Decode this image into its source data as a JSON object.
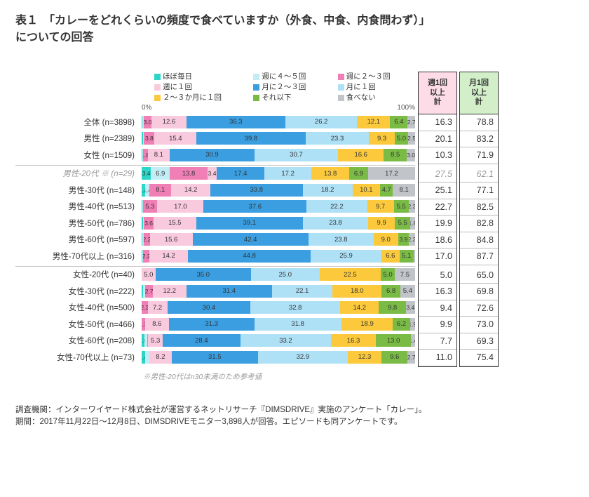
{
  "title": {
    "line1": "表１　「カレーをどれくらいの頻度で食べていますか（外食、中食、内食問わず）」",
    "line2": "についての回答"
  },
  "colors": {
    "c1": "#2dd6c8",
    "c2": "#c3edf5",
    "c3": "#f07fb6",
    "c4": "#f9c9dd",
    "c5": "#3a9ee0",
    "c6": "#aee0f6",
    "c7": "#fbc93b",
    "c8": "#7abb45",
    "c9": "#c1c5c9",
    "axis_text": "#555555",
    "border": "#333333",
    "bg": "#ffffff",
    "head_pink": "#fddce8",
    "head_green": "#d2efc9"
  },
  "legend": [
    {
      "label": "ほぼ毎日",
      "color_key": "c1"
    },
    {
      "label": "週に４～５回",
      "color_key": "c2"
    },
    {
      "label": "週に２～３回",
      "color_key": "c3"
    },
    {
      "label": "週に１回",
      "color_key": "c4"
    },
    {
      "label": "月に２～３回",
      "color_key": "c5"
    },
    {
      "label": "月に１回",
      "color_key": "c6"
    },
    {
      "label": "２～３か月に１回",
      "color_key": "c7"
    },
    {
      "label": "それ以下",
      "color_key": "c8"
    },
    {
      "label": "食べない",
      "color_key": "c9"
    }
  ],
  "axis": {
    "p0": "0%",
    "p100": "100%"
  },
  "summary_headers": {
    "col1": "週1回\n以上\n計",
    "col2": "月1回\n以上\n計"
  },
  "groups": [
    {
      "rows": [
        {
          "label": "全体 (n=3898)",
          "italic": false,
          "segments": [
            0.3,
            0.4,
            3.0,
            12.6,
            36.3,
            26.2,
            12.1,
            6.4,
            2.7
          ],
          "shown": [
            "",
            "",
            "3.0",
            "12.6",
            "36.3",
            "26.2",
            "12.1",
            "6.4",
            "2.7"
          ],
          "sum1": "16.3",
          "sum2": "78.8"
        },
        {
          "label": "男性 (n=2389)",
          "italic": false,
          "segments": [
            0.4,
            0.5,
            3.8,
            15.4,
            39.8,
            23.3,
            9.3,
            5.0,
            2.5
          ],
          "shown": [
            "",
            "",
            "3.8",
            "15.4",
            "39.8",
            "23.3",
            "9.3",
            "5.0",
            "2.5"
          ],
          "sum1": "20.1",
          "sum2": "83.2"
        },
        {
          "label": "女性 (n=1509)",
          "italic": false,
          "segments": [
            0.2,
            0.2,
            1.8,
            8.1,
            30.9,
            30.7,
            16.6,
            8.5,
            3.0
          ],
          "shown": [
            "",
            "",
            "1.8",
            "8.1",
            "30.9",
            "30.7",
            "16.6",
            "8.5",
            "3.0"
          ],
          "sum1": "10.3",
          "sum2": "71.9"
        }
      ]
    },
    {
      "rows": [
        {
          "label": "男性-20代 ※ (n=29)",
          "italic": true,
          "segments": [
            3.4,
            6.9,
            13.8,
            3.4,
            17.4,
            17.2,
            13.8,
            6.9,
            17.2
          ],
          "shown": [
            "3.4",
            "6.9",
            "13.8",
            "3.4",
            "17.4",
            "17.2",
            "13.8",
            "6.9",
            "17.2"
          ],
          "sum1": "27.5",
          "sum2": "62.1"
        },
        {
          "label": "男性-30代 (n=148)",
          "italic": false,
          "segments": [
            1.4,
            1.4,
            8.1,
            14.2,
            33.8,
            18.2,
            10.1,
            4.7,
            8.1
          ],
          "shown": [
            "1.4",
            "1.4",
            "8.1",
            "14.2",
            "33.8",
            "18.2",
            "10.1",
            "4.7",
            "8.1"
          ],
          "sum1": "25.1",
          "sum2": "77.1"
        },
        {
          "label": "男性-40代 (n=513)",
          "italic": false,
          "segments": [
            0.2,
            0.2,
            5.3,
            17.0,
            37.6,
            22.2,
            9.7,
            5.5,
            2.3
          ],
          "shown": [
            "",
            "",
            "5.3",
            "17.0",
            "37.6",
            "22.2",
            "9.7",
            "5.5",
            "2.3"
          ],
          "sum1": "22.7",
          "sum2": "82.5"
        },
        {
          "label": "男性-50代 (n=786)",
          "italic": false,
          "segments": [
            0.4,
            0.4,
            3.6,
            15.5,
            39.1,
            23.8,
            9.9,
            5.5,
            1.8
          ],
          "shown": [
            "",
            "",
            "3.6",
            "15.5",
            "39.1",
            "23.8",
            "9.9",
            "5.5",
            "1.8"
          ],
          "sum1": "19.9",
          "sum2": "82.8"
        },
        {
          "label": "男性-60代 (n=597)",
          "italic": false,
          "segments": [
            0.3,
            0.5,
            2.2,
            15.6,
            42.4,
            23.8,
            9.0,
            3.9,
            2.3
          ],
          "shown": [
            "",
            "",
            "2.2",
            "15.6",
            "42.4",
            "23.8",
            "9.0",
            "3.9",
            "2.3"
          ],
          "sum1": "18.6",
          "sum2": "84.8"
        },
        {
          "label": "男性-70代以上 (n=316)",
          "italic": false,
          "segments": [
            0.3,
            0.3,
            2.2,
            14.2,
            44.8,
            25.9,
            6.6,
            5.1,
            0.6
          ],
          "shown": [
            "",
            "",
            "2.2",
            "14.2",
            "44.8",
            "25.9",
            "6.6",
            "5.1",
            ""
          ],
          "sum1": "17.0",
          "sum2": "87.7"
        }
      ]
    },
    {
      "rows": [
        {
          "label": "女性-20代 (n=40)",
          "italic": false,
          "segments": [
            0,
            0,
            0,
            5.0,
            35.0,
            25.0,
            22.5,
            5.0,
            7.5
          ],
          "shown": [
            "",
            "",
            "",
            "5.0",
            "35.0",
            "25.0",
            "22.5",
            "5.0",
            "7.5"
          ],
          "sum1": "5.0",
          "sum2": "65.0"
        },
        {
          "label": "女性-30代 (n=222)",
          "italic": false,
          "segments": [
            0.5,
            0.9,
            2.7,
            12.2,
            31.4,
            22.1,
            18.0,
            6.8,
            5.4
          ],
          "shown": [
            "",
            "",
            "2.7",
            "12.2",
            "31.4",
            "22.1",
            "18.0",
            "6.8",
            "5.4"
          ],
          "sum1": "16.3",
          "sum2": "69.8"
        },
        {
          "label": "女性-40代 (n=500)",
          "italic": false,
          "segments": [
            0,
            0,
            2.2,
            7.2,
            30.4,
            32.8,
            14.2,
            9.8,
            3.4
          ],
          "shown": [
            "",
            "",
            "2.2",
            "7.2",
            "30.4",
            "32.8",
            "14.2",
            "9.8",
            "3.4"
          ],
          "sum1": "9.4",
          "sum2": "72.6"
        },
        {
          "label": "女性-50代 (n=466)",
          "italic": false,
          "segments": [
            0,
            0,
            1.3,
            8.6,
            31.3,
            31.8,
            18.9,
            6.2,
            1.9
          ],
          "shown": [
            "",
            "",
            "1.3",
            "8.6",
            "31.3",
            "31.8",
            "18.9",
            "6.2",
            "1.9"
          ],
          "sum1": "9.9",
          "sum2": "73.0"
        },
        {
          "label": "女性-60代 (n=208)",
          "italic": false,
          "segments": [
            1.0,
            1.0,
            0.4,
            5.3,
            28.4,
            33.2,
            16.3,
            13.0,
            1.4
          ],
          "shown": [
            "1.0",
            "",
            "",
            "5.3",
            "28.4",
            "33.2",
            "16.3",
            "13.0",
            "1.4"
          ],
          "sum1": "7.7",
          "sum2": "69.3"
        },
        {
          "label": "女性-70代以上 (n=73)",
          "italic": false,
          "segments": [
            1.4,
            1.4,
            0,
            8.2,
            31.5,
            32.9,
            12.3,
            9.6,
            2.7
          ],
          "shown": [
            "1.4",
            "",
            "",
            "8.2",
            "31.5",
            "32.9",
            "12.3",
            "9.6",
            "2.7"
          ],
          "sum1": "11.0",
          "sum2": "75.4"
        }
      ]
    }
  ],
  "footnote": "※男性-20代はn30未満のため参考値",
  "source": {
    "line1": "調査機関：インターワイヤード株式会社が運営するネットリサーチ『DIMSDRIVE』実施のアンケート「カレー」。",
    "line2": "期間：2017年11月22日～12月8日、DIMSDRIVEモニター3,898人が回答。エピソードも同アンケートです。"
  }
}
